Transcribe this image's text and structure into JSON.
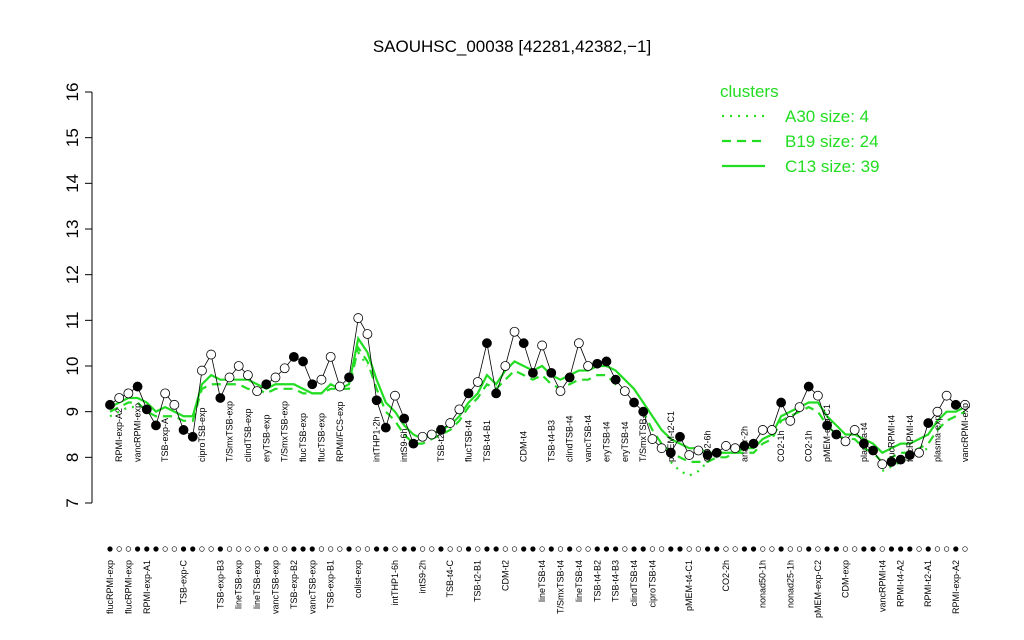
{
  "chart_data": {
    "type": "line",
    "title": "SAOUHSC_00038 [42281,42382,−1]",
    "ylim": [
      7,
      16
    ],
    "yticks": [
      7,
      8,
      9,
      10,
      11,
      12,
      13,
      14,
      15,
      16
    ],
    "legend_title": "clusters",
    "legend_position": "top-right",
    "categories": [
      "flucRPMI-exp",
      "RPMI-exp-A2",
      "flucRPMI-exp",
      "vancRPMI-exp",
      "RPMI-exp-A1",
      null,
      "TSB-exp-A",
      null,
      "TSB-exp-C",
      null,
      "ciproTSB-exp",
      null,
      "TSB-exp-B3",
      "T/SmxTSB-exp",
      "lineTSB-exp",
      "clindTSB-exp",
      "lineTSB-exp",
      "eryTSB-exp",
      "vancTSB-exp",
      "T/SmxTSB-exp",
      "TSB-exp-B2",
      "flucTSB-exp",
      "vancTSB-exp",
      "flucTSB-exp",
      "TSB-exp-B1",
      "RPMI/FCS-exp",
      null,
      "colist-exp",
      null,
      "intTHP1-2h",
      null,
      "intTHP1-6h",
      "intS9-6h",
      null,
      "intS9-2h",
      null,
      "TSB-t2-C",
      "TSB-t4-C",
      null,
      "flucTSB-t4",
      "TSB-t2-B1",
      "TSB-t4-B1",
      null,
      "CDM-t2",
      null,
      "CDM-t4",
      null,
      "lineTSB-t4",
      "TSB-t4-B3",
      "T/SmxTSB-t4",
      "clindTSB-t4",
      "lineTSB-t4",
      "vancTSB-t4",
      "TSB-t4-B2",
      "eryTSB-t4",
      "TSB-t4-B3",
      "eryTSB-t4",
      "clindTSB-t4",
      "T/SmxTSB-t4",
      "ciproTSB-t4",
      null,
      "pMEM-t2-C1",
      null,
      "pMEM-t4-C1",
      null,
      "CO2-6h",
      null,
      "CO2-2h",
      null,
      "anaer-2h",
      null,
      "nonad50-1h",
      null,
      "CO2-1h",
      "nonad25-1h",
      null,
      "CO2-1h",
      "pMEM-exp-C2",
      "pMEM-exp-C1",
      null,
      "CDM-exp",
      null,
      "plasma-t4",
      null,
      "vancRPMI-t4",
      "flucRPMI-t4",
      "RPMI-t4-A2",
      "flucRPMI-t4",
      null,
      "RPMI-t2-A1",
      "plasma-exp",
      null,
      "RPMI-exp-A2",
      "vancRPMI-exp"
    ],
    "samples": {
      "values": [
        9.15,
        9.3,
        9.4,
        9.55,
        9.05,
        8.7,
        9.4,
        9.15,
        8.6,
        8.45,
        9.9,
        10.25,
        9.3,
        9.75,
        10.0,
        9.8,
        9.45,
        9.6,
        9.75,
        9.95,
        10.2,
        10.1,
        9.6,
        9.7,
        10.2,
        9.55,
        9.75,
        11.05,
        10.7,
        9.25,
        8.65,
        9.35,
        8.85,
        8.3,
        8.45,
        8.5,
        8.6,
        8.75,
        9.05,
        9.4,
        9.65,
        10.5,
        9.4,
        10.0,
        10.75,
        10.5,
        9.85,
        10.45,
        9.85,
        9.45,
        9.75,
        10.5,
        10.0,
        10.05,
        10.1,
        9.7,
        9.45,
        9.2,
        9.0,
        8.4,
        8.2,
        8.1,
        8.45,
        8.05,
        8.15,
        8.05,
        8.1,
        8.25,
        8.2,
        8.25,
        8.3,
        8.6,
        8.6,
        9.2,
        8.8,
        9.1,
        9.55,
        9.35,
        8.7,
        8.5,
        8.35,
        8.6,
        8.3,
        8.15,
        7.85,
        7.9,
        7.95,
        8.05,
        8.1,
        8.75,
        9.0,
        9.35,
        9.15,
        9.15
      ],
      "filled": [
        true,
        false,
        false,
        true,
        true,
        true,
        false,
        false,
        true,
        true,
        false,
        false,
        true,
        false,
        false,
        false,
        false,
        true,
        false,
        false,
        true,
        true,
        true,
        false,
        false,
        false,
        true,
        false,
        false,
        true,
        true,
        false,
        true,
        true,
        false,
        false,
        true,
        false,
        false,
        true,
        false,
        true,
        true,
        false,
        false,
        true,
        true,
        false,
        true,
        false,
        true,
        false,
        false,
        true,
        true,
        true,
        false,
        true,
        true,
        false,
        false,
        true,
        true,
        false,
        false,
        true,
        true,
        false,
        false,
        true,
        true,
        false,
        false,
        true,
        false,
        false,
        true,
        false,
        true,
        true,
        false,
        false,
        true,
        true,
        false,
        true,
        true,
        true,
        false,
        true,
        false,
        false,
        true,
        false
      ]
    },
    "series": [
      {
        "name": "A30 size: 4",
        "color": "#22dd22",
        "dash": "dotted",
        "values": [
          8.9,
          9.0,
          9.1,
          9.1,
          null,
          null,
          null,
          null,
          null,
          null,
          null,
          null,
          null,
          null,
          null,
          null,
          null,
          null,
          null,
          null,
          null,
          null,
          null,
          null,
          null,
          null,
          null,
          10.3,
          10.0,
          null,
          null,
          null,
          null,
          null,
          null,
          null,
          null,
          null,
          null,
          null,
          null,
          null,
          null,
          null,
          null,
          null,
          null,
          null,
          null,
          null,
          null,
          null,
          null,
          null,
          null,
          null,
          null,
          null,
          null,
          null,
          null,
          7.9,
          7.7,
          7.6,
          7.7,
          7.9,
          8.0,
          null,
          null,
          null,
          null,
          null,
          null,
          null,
          null,
          null,
          null,
          null,
          null,
          null,
          null,
          null,
          null,
          null,
          7.7,
          7.8,
          7.9,
          8.0,
          8.1,
          8.2,
          null,
          null,
          null,
          null
        ]
      },
      {
        "name": "B19 size: 24",
        "color": "#22dd22",
        "dash": "dashed",
        "values": [
          9.0,
          9.1,
          9.2,
          9.2,
          9.0,
          8.9,
          8.9,
          8.9,
          8.8,
          8.8,
          9.5,
          9.6,
          9.6,
          9.6,
          9.6,
          9.5,
          9.5,
          9.4,
          9.5,
          9.5,
          9.5,
          9.4,
          9.4,
          9.4,
          9.5,
          9.5,
          9.5,
          10.4,
          10.1,
          9.5,
          9.0,
          8.8,
          8.5,
          8.3,
          8.3,
          8.4,
          8.5,
          8.6,
          8.8,
          9.1,
          9.3,
          9.6,
          9.5,
          9.7,
          9.9,
          9.8,
          9.7,
          9.8,
          9.6,
          9.5,
          9.6,
          9.7,
          9.7,
          9.8,
          9.8,
          9.6,
          9.4,
          9.2,
          9.0,
          8.6,
          8.3,
          8.1,
          8.0,
          7.9,
          7.9,
          7.9,
          8.0,
          8.0,
          8.1,
          8.1,
          8.1,
          8.3,
          8.4,
          8.8,
          8.9,
          9.0,
          9.1,
          9.0,
          8.7,
          8.5,
          8.4,
          8.4,
          8.2,
          8.1,
          7.9,
          8.0,
          8.1,
          8.1,
          8.2,
          8.3,
          8.6,
          8.8,
          8.9,
          9.0
        ]
      },
      {
        "name": "C13 size: 39",
        "color": "#22dd22",
        "dash": "solid",
        "values": [
          9.1,
          9.2,
          9.3,
          9.3,
          9.2,
          9.0,
          9.1,
          9.0,
          8.9,
          8.9,
          9.6,
          9.8,
          9.7,
          9.7,
          9.7,
          9.7,
          9.6,
          9.5,
          9.6,
          9.6,
          9.6,
          9.5,
          9.4,
          9.4,
          9.6,
          9.5,
          9.6,
          10.6,
          10.3,
          9.7,
          9.2,
          9.0,
          8.7,
          8.5,
          8.4,
          8.5,
          8.6,
          8.7,
          8.9,
          9.2,
          9.4,
          9.8,
          9.6,
          9.9,
          10.1,
          10.0,
          9.9,
          10.0,
          9.8,
          9.7,
          9.8,
          9.9,
          9.9,
          10.0,
          10.0,
          9.9,
          9.7,
          9.5,
          9.2,
          8.9,
          8.6,
          8.4,
          8.3,
          8.2,
          8.2,
          8.1,
          8.1,
          8.1,
          8.1,
          8.2,
          8.2,
          8.4,
          8.5,
          8.9,
          9.0,
          9.1,
          9.2,
          9.2,
          8.9,
          8.7,
          8.5,
          8.5,
          8.4,
          8.3,
          8.1,
          8.2,
          8.3,
          8.3,
          8.4,
          8.5,
          8.8,
          9.0,
          9.0,
          9.1
        ]
      }
    ]
  }
}
